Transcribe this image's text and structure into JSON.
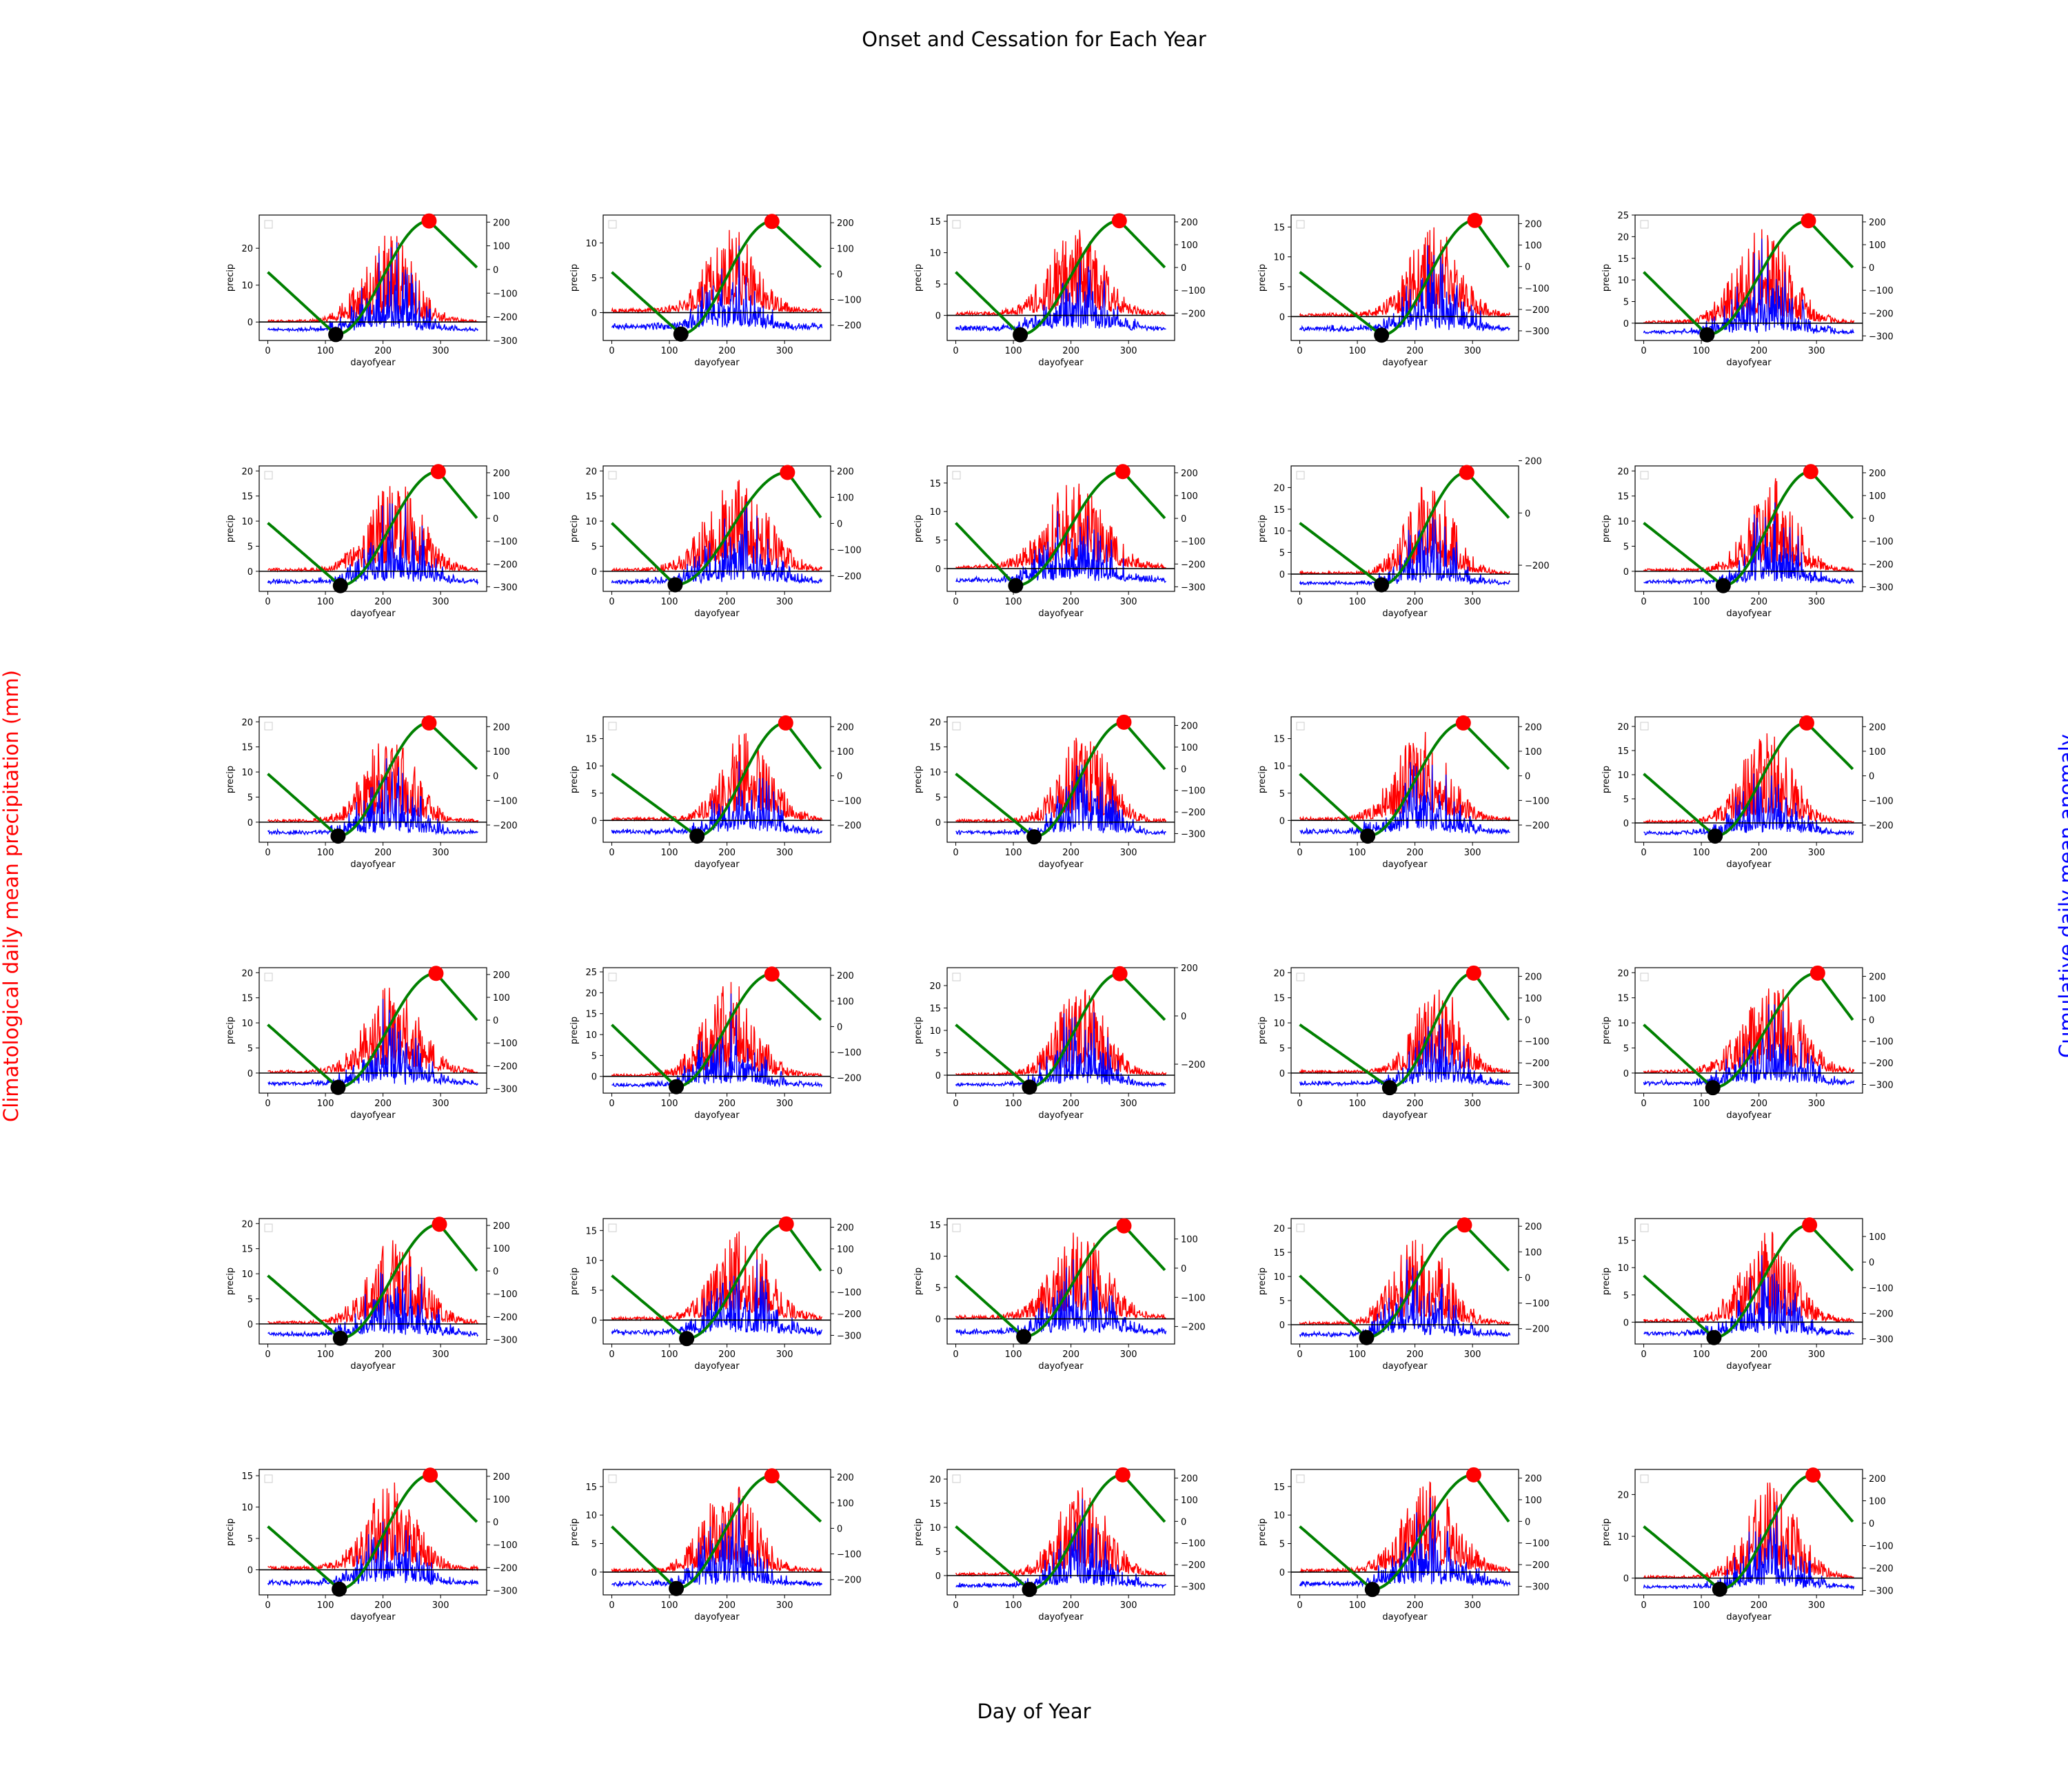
{
  "figure": {
    "title": "Onset and Cessation for Each Year",
    "xlabel": "Day of Year",
    "ylabel_left": "Climatological daily mean precipitation (mm)",
    "ylabel_right": "Cumulative daily mean anomaly"
  },
  "chart_data": {
    "type": "line",
    "layout": "6 rows x 5 columns of twin-axis subplots",
    "subplot_xlabel": "dayofyear",
    "subplot_ylabel": "precip",
    "xlim": [
      -15,
      380
    ],
    "xticks": [
      0,
      100,
      200,
      300
    ],
    "colors": {
      "precip": "#ff0000",
      "anomaly": "#0000ff",
      "cumulative": "#008000",
      "zero_line": "#000000",
      "onset_marker": "#000000",
      "cessation_marker": "#ff0000"
    },
    "panels": [
      {
        "ylim": [
          -5,
          29
        ],
        "yticks": [
          0,
          10,
          20
        ],
        "y2lim": [
          -300,
          230
        ],
        "y2ticks": [
          -300,
          -200,
          -100,
          0,
          100,
          200
        ],
        "onset": 118,
        "cessation": 280,
        "peak": 27
      },
      {
        "ylim": [
          -4,
          14
        ],
        "yticks": [
          0,
          5,
          10
        ],
        "y2lim": [
          -260,
          230
        ],
        "y2ticks": [
          -200,
          -100,
          0,
          100,
          200
        ],
        "onset": 120,
        "cessation": 278,
        "peak": 13
      },
      {
        "ylim": [
          -4,
          16
        ],
        "yticks": [
          0,
          5,
          10,
          15
        ],
        "y2lim": [
          -320,
          230
        ],
        "y2ticks": [
          -200,
          -100,
          0,
          100,
          200
        ],
        "onset": 112,
        "cessation": 284,
        "peak": 15
      },
      {
        "ylim": [
          -4,
          17
        ],
        "yticks": [
          0,
          5,
          10,
          15
        ],
        "y2lim": [
          -345,
          240
        ],
        "y2ticks": [
          -300,
          -200,
          -100,
          0,
          100,
          200
        ],
        "onset": 142,
        "cessation": 304,
        "peak": 16
      },
      {
        "ylim": [
          -4,
          25
        ],
        "yticks": [
          0,
          5,
          10,
          15,
          20,
          25
        ],
        "y2lim": [
          -320,
          230
        ],
        "y2ticks": [
          -300,
          -200,
          -100,
          0,
          100,
          200
        ],
        "onset": 110,
        "cessation": 286,
        "peak": 24
      },
      {
        "ylim": [
          -4,
          21
        ],
        "yticks": [
          0,
          5,
          10,
          15,
          20
        ],
        "y2lim": [
          -320,
          230
        ],
        "y2ticks": [
          -300,
          -200,
          -100,
          0,
          100,
          200
        ],
        "onset": 126,
        "cessation": 296,
        "peak": 20
      },
      {
        "ylim": [
          -4,
          21
        ],
        "yticks": [
          0,
          5,
          10,
          15,
          20
        ],
        "y2lim": [
          -260,
          220
        ],
        "y2ticks": [
          -200,
          -100,
          0,
          100,
          200
        ],
        "onset": 110,
        "cessation": 305,
        "peak": 20
      },
      {
        "ylim": [
          -4,
          18
        ],
        "yticks": [
          0,
          5,
          10,
          15
        ],
        "y2lim": [
          -320,
          230
        ],
        "y2ticks": [
          -300,
          -200,
          -100,
          0,
          100,
          200
        ],
        "onset": 104,
        "cessation": 290,
        "peak": 17
      },
      {
        "ylim": [
          -4,
          25
        ],
        "yticks": [
          0,
          5,
          10,
          15,
          20
        ],
        "y2lim": [
          -300,
          180
        ],
        "y2ticks": [
          -200,
          0,
          200
        ],
        "onset": 142,
        "cessation": 290,
        "peak": 23
      },
      {
        "ylim": [
          -4,
          21
        ],
        "yticks": [
          0,
          5,
          10,
          15,
          20
        ],
        "y2lim": [
          -320,
          230
        ],
        "y2ticks": [
          -300,
          -200,
          -100,
          0,
          100,
          200
        ],
        "onset": 138,
        "cessation": 290,
        "peak": 20
      },
      {
        "ylim": [
          -4,
          21
        ],
        "yticks": [
          0,
          5,
          10,
          15,
          20
        ],
        "y2lim": [
          -270,
          240
        ],
        "y2ticks": [
          -200,
          -100,
          0,
          100,
          200
        ],
        "onset": 122,
        "cessation": 280,
        "peak": 20
      },
      {
        "ylim": [
          -4,
          19
        ],
        "yticks": [
          0,
          5,
          10,
          15
        ],
        "y2lim": [
          -270,
          240
        ],
        "y2ticks": [
          -200,
          -100,
          0,
          100,
          200
        ],
        "onset": 148,
        "cessation": 302,
        "peak": 18
      },
      {
        "ylim": [
          -4,
          21
        ],
        "yticks": [
          0,
          5,
          10,
          15,
          20
        ],
        "y2lim": [
          -340,
          240
        ],
        "y2ticks": [
          -300,
          -200,
          -100,
          0,
          100,
          200
        ],
        "onset": 136,
        "cessation": 292,
        "peak": 20
      },
      {
        "ylim": [
          -4,
          19
        ],
        "yticks": [
          0,
          5,
          10,
          15
        ],
        "y2lim": [
          -270,
          240
        ],
        "y2ticks": [
          -200,
          -100,
          0,
          100,
          200
        ],
        "onset": 118,
        "cessation": 284,
        "peak": 18
      },
      {
        "ylim": [
          -4,
          22
        ],
        "yticks": [
          0,
          5,
          10,
          15,
          20
        ],
        "y2lim": [
          -270,
          240
        ],
        "y2ticks": [
          -200,
          -100,
          0,
          100,
          200
        ],
        "onset": 124,
        "cessation": 283,
        "peak": 21
      },
      {
        "ylim": [
          -4,
          21
        ],
        "yticks": [
          0,
          5,
          10,
          15,
          20
        ],
        "y2lim": [
          -320,
          230
        ],
        "y2ticks": [
          -300,
          -200,
          -100,
          0,
          100,
          200
        ],
        "onset": 122,
        "cessation": 292,
        "peak": 19
      },
      {
        "ylim": [
          -4,
          26
        ],
        "yticks": [
          0,
          5,
          10,
          15,
          20,
          25
        ],
        "y2lim": [
          -260,
          230
        ],
        "y2ticks": [
          -200,
          -100,
          0,
          100,
          200
        ],
        "onset": 112,
        "cessation": 278,
        "peak": 25
      },
      {
        "ylim": [
          -4,
          24
        ],
        "yticks": [
          0,
          5,
          10,
          15,
          20
        ],
        "y2lim": [
          -320,
          200
        ],
        "y2ticks": [
          -200,
          0,
          200
        ],
        "onset": 128,
        "cessation": 285,
        "peak": 22
      },
      {
        "ylim": [
          -4,
          21
        ],
        "yticks": [
          0,
          5,
          10,
          15,
          20
        ],
        "y2lim": [
          -340,
          240
        ],
        "y2ticks": [
          -300,
          -200,
          -100,
          0,
          100,
          200
        ],
        "onset": 156,
        "cessation": 302,
        "peak": 20
      },
      {
        "ylim": [
          -4,
          21
        ],
        "yticks": [
          0,
          5,
          10,
          15,
          20
        ],
        "y2lim": [
          -340,
          240
        ],
        "y2ticks": [
          -300,
          -200,
          -100,
          0,
          100,
          200
        ],
        "onset": 120,
        "cessation": 302,
        "peak": 20
      },
      {
        "ylim": [
          -4,
          21
        ],
        "yticks": [
          0,
          5,
          10,
          15,
          20
        ],
        "y2lim": [
          -320,
          230
        ],
        "y2ticks": [
          -300,
          -200,
          -100,
          0,
          100,
          200
        ],
        "onset": 126,
        "cessation": 298,
        "peak": 19
      },
      {
        "ylim": [
          -4,
          17
        ],
        "yticks": [
          0,
          5,
          10,
          15
        ],
        "y2lim": [
          -340,
          240
        ],
        "y2ticks": [
          -300,
          -200,
          -100,
          0,
          100,
          200
        ],
        "onset": 130,
        "cessation": 303,
        "peak": 16
      },
      {
        "ylim": [
          -4,
          16
        ],
        "yticks": [
          0,
          5,
          10,
          15
        ],
        "y2lim": [
          -260,
          170
        ],
        "y2ticks": [
          -200,
          -100,
          0,
          100
        ],
        "onset": 118,
        "cessation": 292,
        "peak": 15
      },
      {
        "ylim": [
          -4,
          22
        ],
        "yticks": [
          0,
          5,
          10,
          15,
          20
        ],
        "y2lim": [
          -260,
          230
        ],
        "y2ticks": [
          -200,
          -100,
          0,
          100,
          200
        ],
        "onset": 116,
        "cessation": 286,
        "peak": 21
      },
      {
        "ylim": [
          -4,
          19
        ],
        "yticks": [
          0,
          5,
          10,
          15
        ],
        "y2lim": [
          -320,
          170
        ],
        "y2ticks": [
          -300,
          -200,
          -100,
          0,
          100
        ],
        "onset": 122,
        "cessation": 288,
        "peak": 18
      },
      {
        "ylim": [
          -4,
          16
        ],
        "yticks": [
          0,
          5,
          10,
          15
        ],
        "y2lim": [
          -320,
          230
        ],
        "y2ticks": [
          -300,
          -200,
          -100,
          0,
          100,
          200
        ],
        "onset": 124,
        "cessation": 282,
        "peak": 15
      },
      {
        "ylim": [
          -4,
          18
        ],
        "yticks": [
          0,
          5,
          10,
          15
        ],
        "y2lim": [
          -260,
          230
        ],
        "y2ticks": [
          -200,
          -100,
          0,
          100,
          200
        ],
        "onset": 112,
        "cessation": 278,
        "peak": 17
      },
      {
        "ylim": [
          -4,
          22
        ],
        "yticks": [
          0,
          5,
          10,
          15,
          20
        ],
        "y2lim": [
          -340,
          240
        ],
        "y2ticks": [
          -300,
          -200,
          -100,
          0,
          100,
          200
        ],
        "onset": 128,
        "cessation": 290,
        "peak": 21
      },
      {
        "ylim": [
          -4,
          18
        ],
        "yticks": [
          0,
          5,
          10,
          15
        ],
        "y2lim": [
          -340,
          240
        ],
        "y2ticks": [
          -300,
          -200,
          -100,
          0,
          100,
          200
        ],
        "onset": 126,
        "cessation": 302,
        "peak": 17
      },
      {
        "ylim": [
          -4,
          26
        ],
        "yticks": [
          0,
          10,
          20
        ],
        "y2lim": [
          -320,
          240
        ],
        "y2ticks": [
          -300,
          -200,
          -100,
          0,
          100,
          200
        ],
        "onset": 132,
        "cessation": 294,
        "peak": 25
      }
    ]
  }
}
